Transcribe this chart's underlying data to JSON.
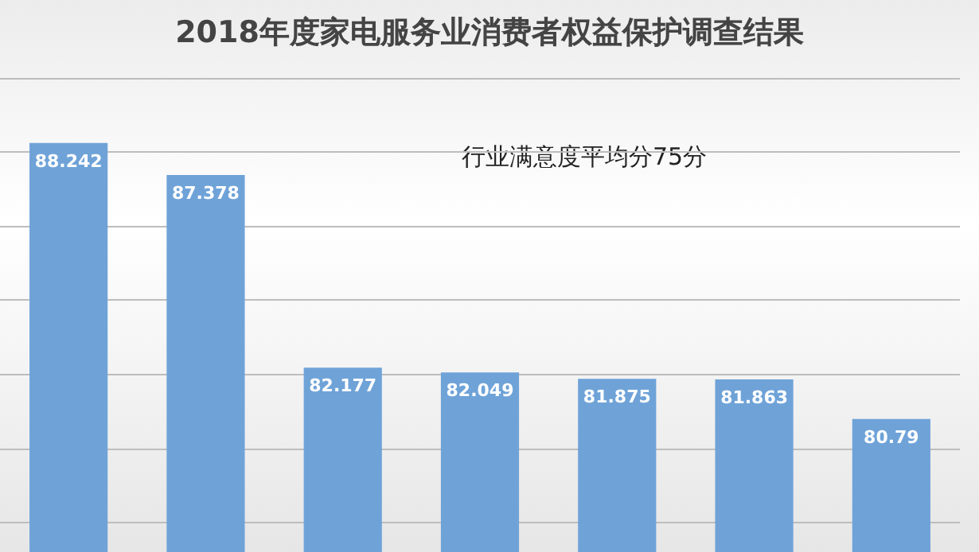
{
  "chart_data": {
    "type": "bar",
    "title": "2018年度家电服务业消费者权益保护调查结果",
    "annotations": [
      "行业满意度平均分75分"
    ],
    "categories": [
      null,
      null,
      null,
      null,
      null,
      null,
      null
    ],
    "values": [
      88.242,
      87.378,
      82.177,
      82.049,
      81.875,
      81.863,
      80.79
    ],
    "color": "#6fa3d8",
    "ylim": [
      77.2,
      90
    ],
    "yticks": [
      {
        "value": 78,
        "label": null
      },
      {
        "value": 80,
        "label": null
      },
      {
        "value": 82,
        "label": null
      },
      {
        "value": 84,
        "label": null
      },
      {
        "value": 86,
        "label": null
      },
      {
        "value": 88,
        "label": null
      },
      {
        "value": 90,
        "label": null
      }
    ],
    "grid": "y",
    "tick_labels": false,
    "data_labels": true
  }
}
